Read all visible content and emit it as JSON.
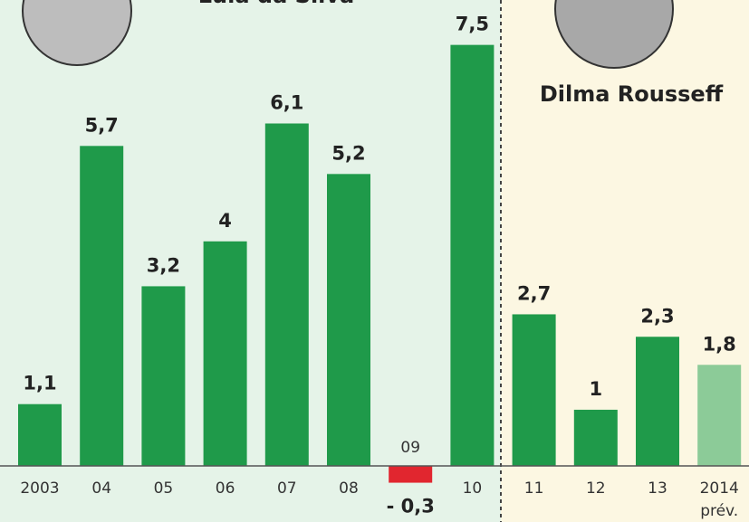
{
  "chart_data": {
    "type": "bar",
    "annotations": [
      "Lula da Silva",
      "Dilma Rousseff"
    ],
    "categories": [
      "2003",
      "04",
      "05",
      "06",
      "07",
      "08",
      "09",
      "10",
      "11",
      "12",
      "13",
      "2014"
    ],
    "projection_note": "prév.",
    "values": [
      1.1,
      5.7,
      3.2,
      4,
      6.1,
      5.2,
      -0.3,
      7.5,
      2.7,
      1,
      2.3,
      1.8
    ],
    "value_labels": [
      "1,1",
      "5,7",
      "3,2",
      "4",
      "6,1",
      "5,2",
      "- 0,3",
      "7,5",
      "2,7",
      "1",
      "2,3",
      "1,8"
    ],
    "colors": [
      "#1f9a4a",
      "#1f9a4a",
      "#1f9a4a",
      "#1f9a4a",
      "#1f9a4a",
      "#1f9a4a",
      "#e1262f",
      "#1f9a4a",
      "#1f9a4a",
      "#1f9a4a",
      "#1f9a4a",
      "#8ccb98"
    ],
    "ylim": [
      -1,
      8.3
    ]
  }
}
